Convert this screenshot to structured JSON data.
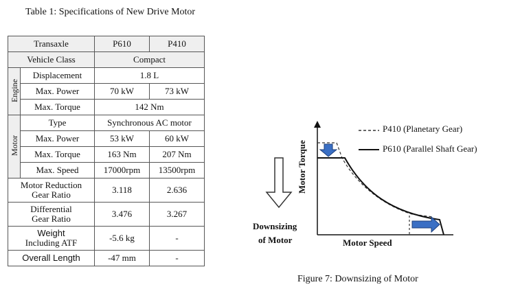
{
  "table": {
    "caption": "Table 1: Specifications of New Drive Motor",
    "header": {
      "row_label": "Transaxle",
      "col1": "P610",
      "col2": "P410"
    },
    "vehicle_class": {
      "label": "Vehicle Class",
      "value": "Compact"
    },
    "engine": {
      "group_label": "Engine",
      "displacement": {
        "label": "Displacement",
        "value": "1.8 L"
      },
      "max_power": {
        "label": "Max. Power",
        "p610": "70 kW",
        "p410": "73 kW"
      },
      "max_torque": {
        "label": "Max. Torque",
        "value": "142 Nm"
      }
    },
    "motor": {
      "group_label": "Motor",
      "type": {
        "label": "Type",
        "value": "Synchronous AC motor"
      },
      "max_power": {
        "label": "Max. Power",
        "p610": "53 kW",
        "p410": "60 kW"
      },
      "max_torque": {
        "label": "Max. Torque",
        "p610": "163 Nm",
        "p410": "207 Nm"
      },
      "max_speed": {
        "label": "Max. Speed",
        "p610": "17000rpm",
        "p410": "13500rpm"
      }
    },
    "motor_reduction": {
      "label_line1": "Motor Reduction",
      "label_line2": "Gear Ratio",
      "p610": "3.118",
      "p410": "2.636"
    },
    "differential": {
      "label_line1": "Differential",
      "label_line2": "Gear Ratio",
      "p610": "3.476",
      "p410": "3.267"
    },
    "weight": {
      "label_line1": "Weight",
      "label_line2": "Including ATF",
      "p610": "-5.6 kg",
      "p410": "-"
    },
    "overall_length": {
      "label": "Overall Length",
      "p610": "-47 mm",
      "p410": "-"
    }
  },
  "figure": {
    "caption": "Figure 7: Downsizing of Motor",
    "legend": {
      "p410": "P410 (Planetary Gear)",
      "p610": "P610 (Parallel Shaft Gear)"
    },
    "y_axis_label": "Motor Torque",
    "x_axis_label": "Motor Speed",
    "downsizing_line1": "Downsizing",
    "downsizing_line2": "of Motor"
  }
}
